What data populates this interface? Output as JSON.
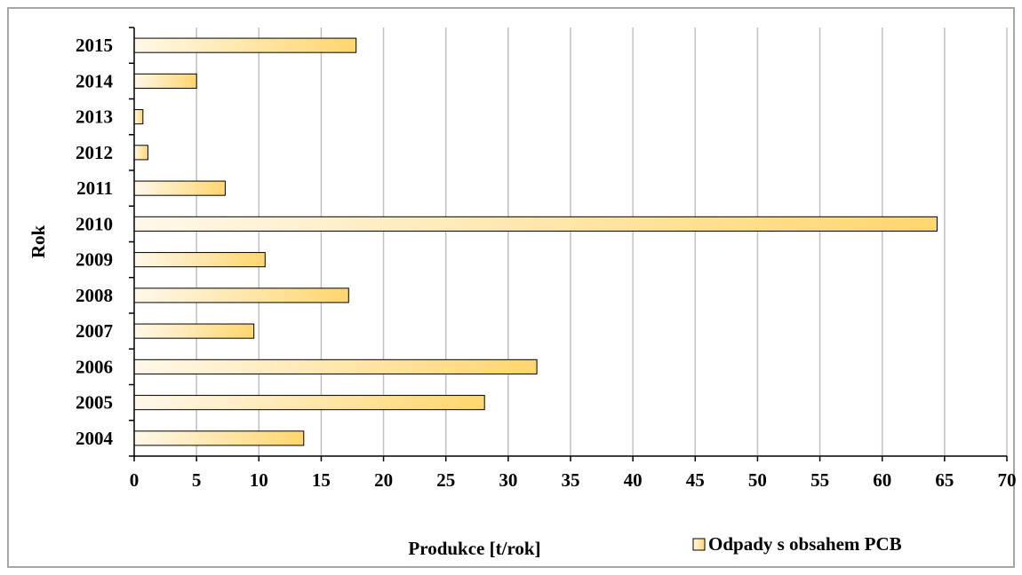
{
  "chart_data": {
    "type": "bar",
    "orientation": "horizontal",
    "categories": [
      "2004",
      "2005",
      "2006",
      "2007",
      "2008",
      "2009",
      "2010",
      "2011",
      "2012",
      "2013",
      "2014",
      "2015"
    ],
    "series": [
      {
        "name": "Odpady s obsahem PCB",
        "values": [
          13.6,
          28.1,
          32.3,
          9.6,
          17.2,
          10.5,
          64.4,
          7.3,
          1.1,
          0.7,
          5.0,
          17.8
        ]
      }
    ],
    "xlabel": "Produkce [t/rok]",
    "ylabel": "Rok",
    "xlim": [
      0,
      70
    ],
    "xticks": [
      0,
      5,
      10,
      15,
      20,
      25,
      30,
      35,
      40,
      45,
      50,
      55,
      60,
      65,
      70
    ],
    "grid": true,
    "legend_position": "bottom-right",
    "colors": {
      "bar_light": "#fff8ea",
      "bar_dark": "#ffd66e",
      "bar_stroke": "#000000",
      "grid": "#c0c0c0",
      "frame": "#a6a6a6"
    }
  }
}
